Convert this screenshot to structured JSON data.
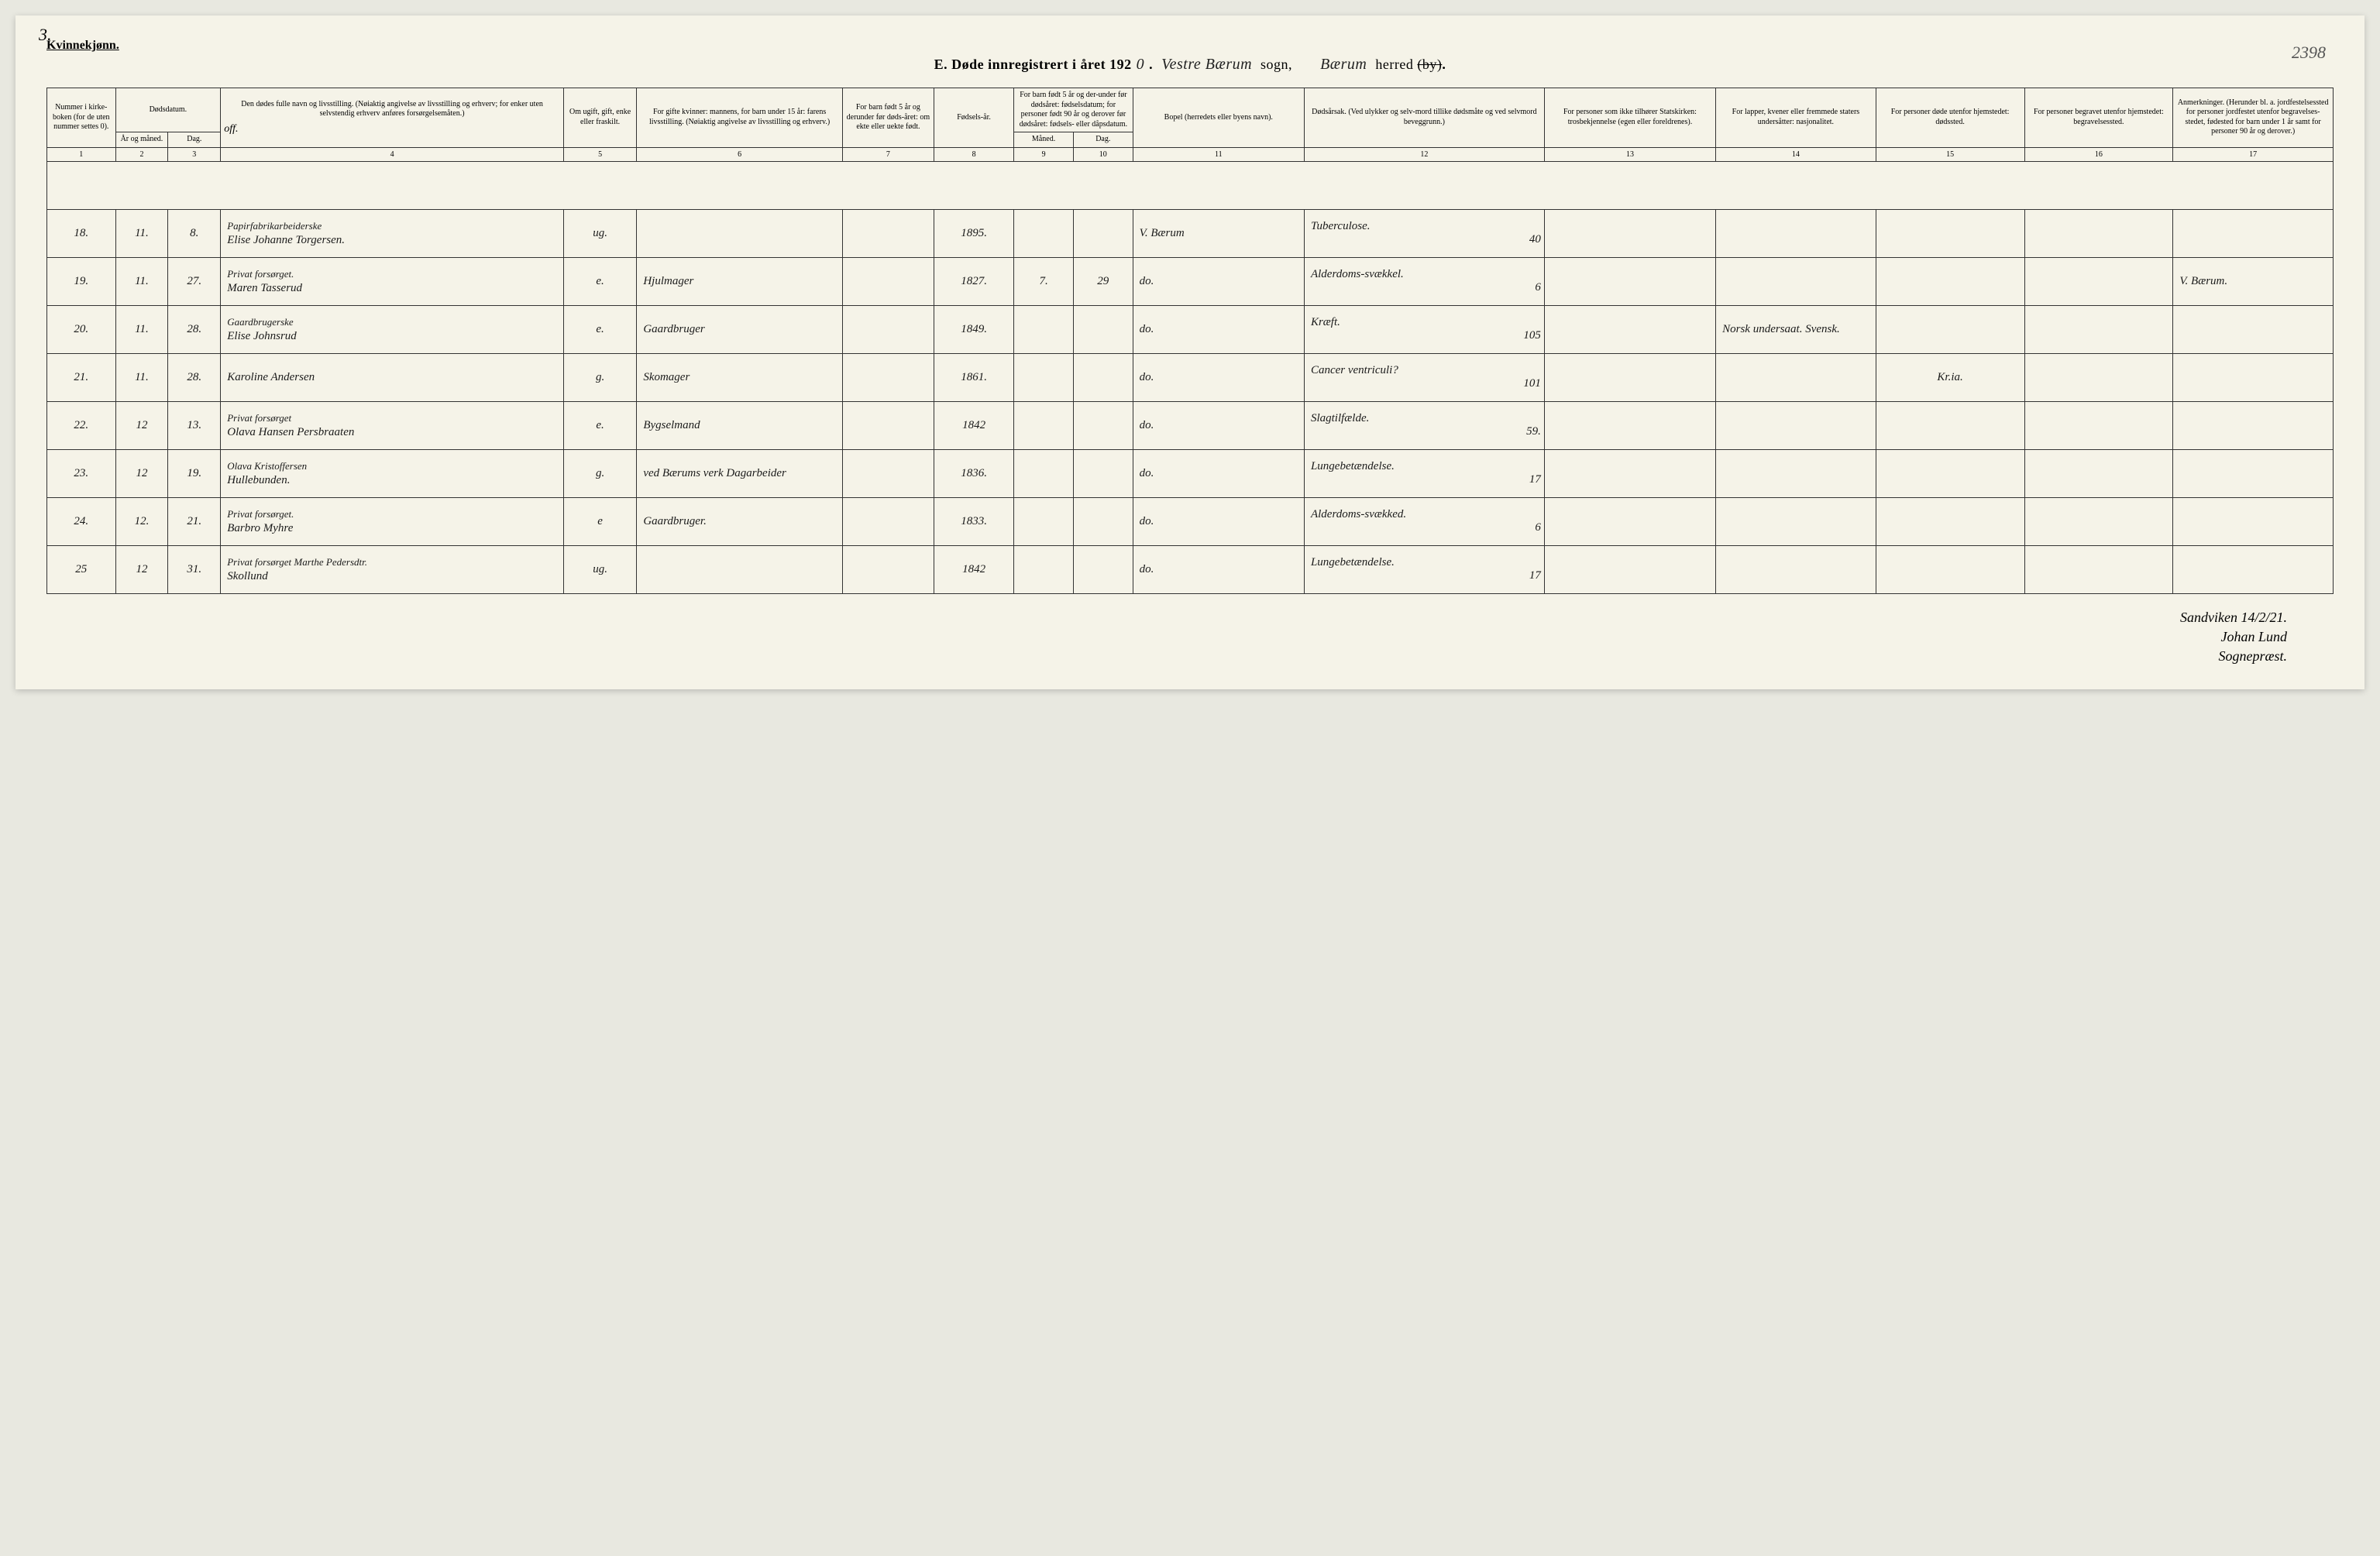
{
  "page_corner_left": "3.",
  "page_corner_right": "2398",
  "gender_label": "Kvinnekjønn.",
  "title": {
    "prefix": "E.   Døde innregistrert i året 192",
    "year_suffix": "0",
    "sogn_handwritten": "Vestre Bærum",
    "sogn_label": "sogn,",
    "herred_handwritten": "Bærum",
    "herred_label": "herred",
    "struck": "(by)",
    "period": "."
  },
  "columns": {
    "c1": "Nummer i kirke-boken (for de uten nummer settes 0).",
    "c2_top": "Dødsdatum.",
    "c2a": "År og måned.",
    "c2b": "Dag.",
    "c4": "Den dødes fulle navn og livsstilling. (Nøiaktig angivelse av livsstilling og erhverv; for enker uten selvstendig erhverv anføres forsørgelsemåten.)",
    "c5": "Om ugift, gift, enke eller fraskilt.",
    "c6": "For gifte kvinner: mannens, for barn under 15 år: farens livsstilling. (Nøiaktig angivelse av livsstilling og erhverv.)",
    "c7": "For barn født 5 år og derunder før døds-året: om ekte eller uekte født.",
    "c8": "Fødsels-år.",
    "c9_top": "For barn født 5 år og der-under før dødsåret: fødselsdatum; for personer født 90 år og derover før dødsåret: fødsels- eller dåpsdatum.",
    "c9a": "Måned.",
    "c9b": "Dag.",
    "c11": "Bopel (herredets eller byens navn).",
    "c12": "Dødsårsak. (Ved ulykker og selv-mord tillike dødsmåte og ved selvmord beveggrunn.)",
    "c13": "For personer som ikke tilhører Statskirken: trosbekjennelse (egen eller foreldrenes).",
    "c14": "For lapper, kvener eller fremmede staters undersåtter: nasjonalitet.",
    "c15": "For personer døde utenfor hjemstedet: dødssted.",
    "c16": "For personer begravet utenfor hjemstedet: begravelsessted.",
    "c17": "Anmerkninger. (Herunder bl. a. jordfestelsessted for personer jordfestet utenfor begravelses-stedet, fødested for barn under 1 år samt for personer 90 år og derover.)"
  },
  "colnums": [
    "1",
    "2",
    "3",
    "4",
    "5",
    "6",
    "7",
    "8",
    "9",
    "10",
    "11",
    "12",
    "13",
    "14",
    "15",
    "16",
    "17"
  ],
  "handwriting_in_header": "off.",
  "rows": [
    {
      "num": "18.",
      "mo": "11.",
      "day": "8.",
      "name_l1": "Papirfabrikarbeiderske",
      "name_l2": "Elise Johanne Torgersen.",
      "civil": "ug.",
      "spouse": "",
      "ekte": "",
      "birth": "1895.",
      "bm": "",
      "bd": "",
      "place": "V. Bærum",
      "cause": "Tuberculose.",
      "cause_no": "40",
      "c13": "",
      "c14": "",
      "c15": "",
      "c16": "",
      "c17": ""
    },
    {
      "num": "19.",
      "mo": "11.",
      "day": "27.",
      "name_l1": "Privat forsørget.",
      "name_l2": "Maren Tasserud",
      "civil": "e.",
      "spouse": "Hjulmager",
      "ekte": "",
      "birth": "1827.",
      "bm": "7.",
      "bd": "29",
      "place": "do.",
      "cause": "Alderdoms-svækkel.",
      "cause_no": "6",
      "c13": "",
      "c14": "",
      "c15": "",
      "c16": "",
      "c17": "V. Bærum."
    },
    {
      "num": "20.",
      "mo": "11.",
      "day": "28.",
      "name_l1": "Gaardbrugerske",
      "name_l2": "Elise Johnsrud",
      "civil": "e.",
      "spouse": "Gaardbruger",
      "ekte": "",
      "birth": "1849.",
      "bm": "",
      "bd": "",
      "place": "do.",
      "cause": "Kræft.",
      "cause_no": "105",
      "c13": "",
      "c14": "Norsk undersaat. Svensk.",
      "c15": "",
      "c16": "",
      "c17": ""
    },
    {
      "num": "21.",
      "mo": "11.",
      "day": "28.",
      "name_l1": "",
      "name_l2": "Karoline Andersen",
      "civil": "g.",
      "spouse": "Skomager",
      "ekte": "",
      "birth": "1861.",
      "bm": "",
      "bd": "",
      "place": "do.",
      "cause": "Cancer ventriculi?",
      "cause_no": "101",
      "c13": "",
      "c14": "",
      "c15": "Kr.ia.",
      "c16": "",
      "c17": ""
    },
    {
      "num": "22.",
      "mo": "12",
      "day": "13.",
      "name_l1": "Privat forsørget",
      "name_l2": "Olava Hansen Persbraaten",
      "civil": "e.",
      "spouse": "Bygselmand",
      "ekte": "",
      "birth": "1842",
      "bm": "",
      "bd": "",
      "place": "do.",
      "cause": "Slagtilfælde.",
      "cause_no": "59.",
      "c13": "",
      "c14": "",
      "c15": "",
      "c16": "",
      "c17": ""
    },
    {
      "num": "23.",
      "mo": "12",
      "day": "19.",
      "name_l1": "Olava Kristoffersen",
      "name_l2": "Hullebunden.",
      "civil": "g.",
      "spouse": "ved Bærums verk Dagarbeider",
      "ekte": "",
      "birth": "1836.",
      "bm": "",
      "bd": "",
      "place": "do.",
      "cause": "Lungebetændelse.",
      "cause_no": "17",
      "c13": "",
      "c14": "",
      "c15": "",
      "c16": "",
      "c17": ""
    },
    {
      "num": "24.",
      "mo": "12.",
      "day": "21.",
      "name_l1": "Privat forsørget.",
      "name_l2": "Barbro Myhre",
      "civil": "e",
      "spouse": "Gaardbruger.",
      "ekte": "",
      "birth": "1833.",
      "bm": "",
      "bd": "",
      "place": "do.",
      "cause": "Alderdoms-svækked.",
      "cause_no": "6",
      "c13": "",
      "c14": "",
      "c15": "",
      "c16": "",
      "c17": ""
    },
    {
      "num": "25",
      "mo": "12",
      "day": "31.",
      "name_l1": "Privat forsørget Marthe Pedersdtr.",
      "name_l2": "Skollund",
      "civil": "ug.",
      "spouse": "",
      "ekte": "",
      "birth": "1842",
      "bm": "",
      "bd": "",
      "place": "do.",
      "cause": "Lungebetændelse.",
      "cause_no": "17",
      "c13": "",
      "c14": "",
      "c15": "",
      "c16": "",
      "c17": ""
    }
  ],
  "footer": {
    "place_date": "Sandviken 14/2/21.",
    "signature": "Johan Lund",
    "title": "Sognepræst."
  },
  "colors": {
    "paper": "#f5f3e8",
    "ink": "#1a1a1a",
    "border": "#333333"
  },
  "col_widths_pct": [
    3.0,
    2.3,
    2.3,
    15.0,
    3.2,
    9.0,
    4.0,
    3.5,
    2.6,
    2.6,
    7.5,
    10.5,
    7.5,
    7.0,
    6.5,
    6.5,
    7.0
  ]
}
